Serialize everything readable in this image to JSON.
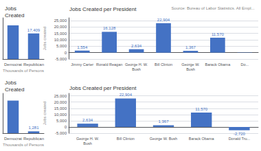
{
  "chart_data": [
    {
      "type": "bar",
      "title": "Jobs\nCreated",
      "categories": [
        "Democrat",
        "Republican"
      ],
      "values": [
        22904,
        17409
      ],
      "value_labels": [
        null,
        "17,409"
      ],
      "color": "#4472C4",
      "xlabel": "Thousands of Persons",
      "ylim": [
        0,
        28000
      ],
      "grid": false,
      "tick_labels": "x"
    },
    {
      "type": "bar",
      "title": "Jobs\nCreated",
      "categories": [
        "Democrat",
        "Republican"
      ],
      "values": [
        22904,
        1281
      ],
      "value_labels": [
        null,
        "1,281"
      ],
      "color": "#4472C4",
      "xlabel": "Thousands of Persons",
      "ylim": [
        0,
        28000
      ],
      "grid": false,
      "tick_labels": "x"
    },
    {
      "type": "bar",
      "title": "Jobs Created per President",
      "annotations": [
        "Source: Bureau of Labor Statistics. All Empl..."
      ],
      "categories": [
        "Jimmy Carter",
        "Ronald Reagan",
        "George H. W.\nBush",
        "Bill Clinton",
        "George W.\nBush",
        "Barack Obama",
        "Do..."
      ],
      "values": [
        1554,
        16128,
        2634,
        22904,
        1367,
        11570,
        -200
      ],
      "value_labels": [
        "1,554",
        "16,128",
        "2,634",
        "22,904",
        "1,367",
        "11,570",
        null
      ],
      "color": "#4472C4",
      "ylabel": "Jobs created",
      "ylim": [
        -5000,
        27000
      ],
      "yticks": [
        {
          "value": -5000,
          "label": "-5,000"
        },
        0,
        {
          "value": 5000,
          "label": "5,000"
        },
        {
          "value": 10000,
          "label": "10,000"
        },
        {
          "value": 15000,
          "label": "15,000"
        },
        {
          "value": 20000,
          "label": "20,000"
        },
        {
          "value": 25000,
          "label": "25,000"
        }
      ],
      "grid": true
    },
    {
      "type": "bar",
      "title": "Jobs Created per President",
      "categories": [
        "George H. W.\nBush",
        "Bill Clinton",
        "George W. Bush",
        "Barack Obama",
        "Donald Tru..."
      ],
      "values": [
        2634,
        22904,
        1367,
        11570,
        -2720
      ],
      "value_labels": [
        "2,634",
        "22,904",
        "1,367",
        "11,570",
        "-2,720"
      ],
      "color": "#4472C4",
      "ylabel": "Jobs created",
      "ylim": [
        -5000,
        27000
      ],
      "yticks": [
        {
          "value": -5000,
          "label": "-5,000"
        },
        0,
        {
          "value": 5000,
          "label": "5,000"
        },
        {
          "value": 10000,
          "label": "10,000"
        },
        {
          "value": 15000,
          "label": "15,000"
        },
        {
          "value": 20000,
          "label": "20,000"
        },
        {
          "value": 25000,
          "label": "25,000"
        }
      ],
      "grid": true
    }
  ]
}
